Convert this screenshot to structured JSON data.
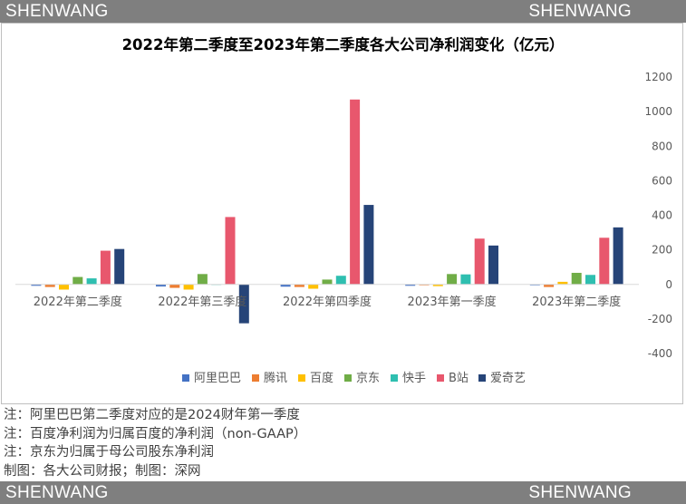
{
  "watermark": {
    "left": "SHENWANG",
    "right": "SHENWANG"
  },
  "chart_data": {
    "type": "bar",
    "title": "2022年第二季度至2023年第二季度各大公司净利润变化（亿元）",
    "categories": [
      "2022年第二季度",
      "2022年第三季度",
      "2022年第四季度",
      "2023年第一季度",
      "2023年第二季度"
    ],
    "ylim": [
      -400,
      1200
    ],
    "yticks": [
      -400,
      -200,
      0,
      200,
      400,
      600,
      800,
      1000,
      1200
    ],
    "y_axis_side": "right",
    "grid": false,
    "legend": "bottom",
    "series": [
      {
        "name": "阿里巴巴",
        "color": "#4472c4",
        "values": [
          -8,
          -12,
          -13,
          -8,
          -5
        ]
      },
      {
        "name": "腾讯",
        "color": "#ed7d31",
        "values": [
          -15,
          -20,
          -15,
          -5,
          -15
        ]
      },
      {
        "name": "百度",
        "color": "#ffc000",
        "values": [
          -30,
          -30,
          -25,
          -10,
          15
        ]
      },
      {
        "name": "京东",
        "color": "#70ad47",
        "values": [
          43,
          60,
          28,
          60,
          67
        ]
      },
      {
        "name": "快手",
        "color": "#2fbfb0",
        "values": [
          35,
          -3,
          50,
          58,
          55
        ]
      },
      {
        "name": "B站",
        "color": "#e8576d",
        "values": [
          195,
          390,
          1070,
          265,
          270
        ]
      },
      {
        "name": "爱奇艺",
        "color": "#264478",
        "values": [
          205,
          -225,
          460,
          225,
          330
        ]
      }
    ]
  },
  "notes": [
    "注：阿里巴巴第二季度对应的是2024财年第一季度",
    "注：百度净利润为归属百度的净利润（non-GAAP）",
    "注：京东为归属于母公司股东净利润",
    "制图：各大公司财报；制图：深网"
  ]
}
